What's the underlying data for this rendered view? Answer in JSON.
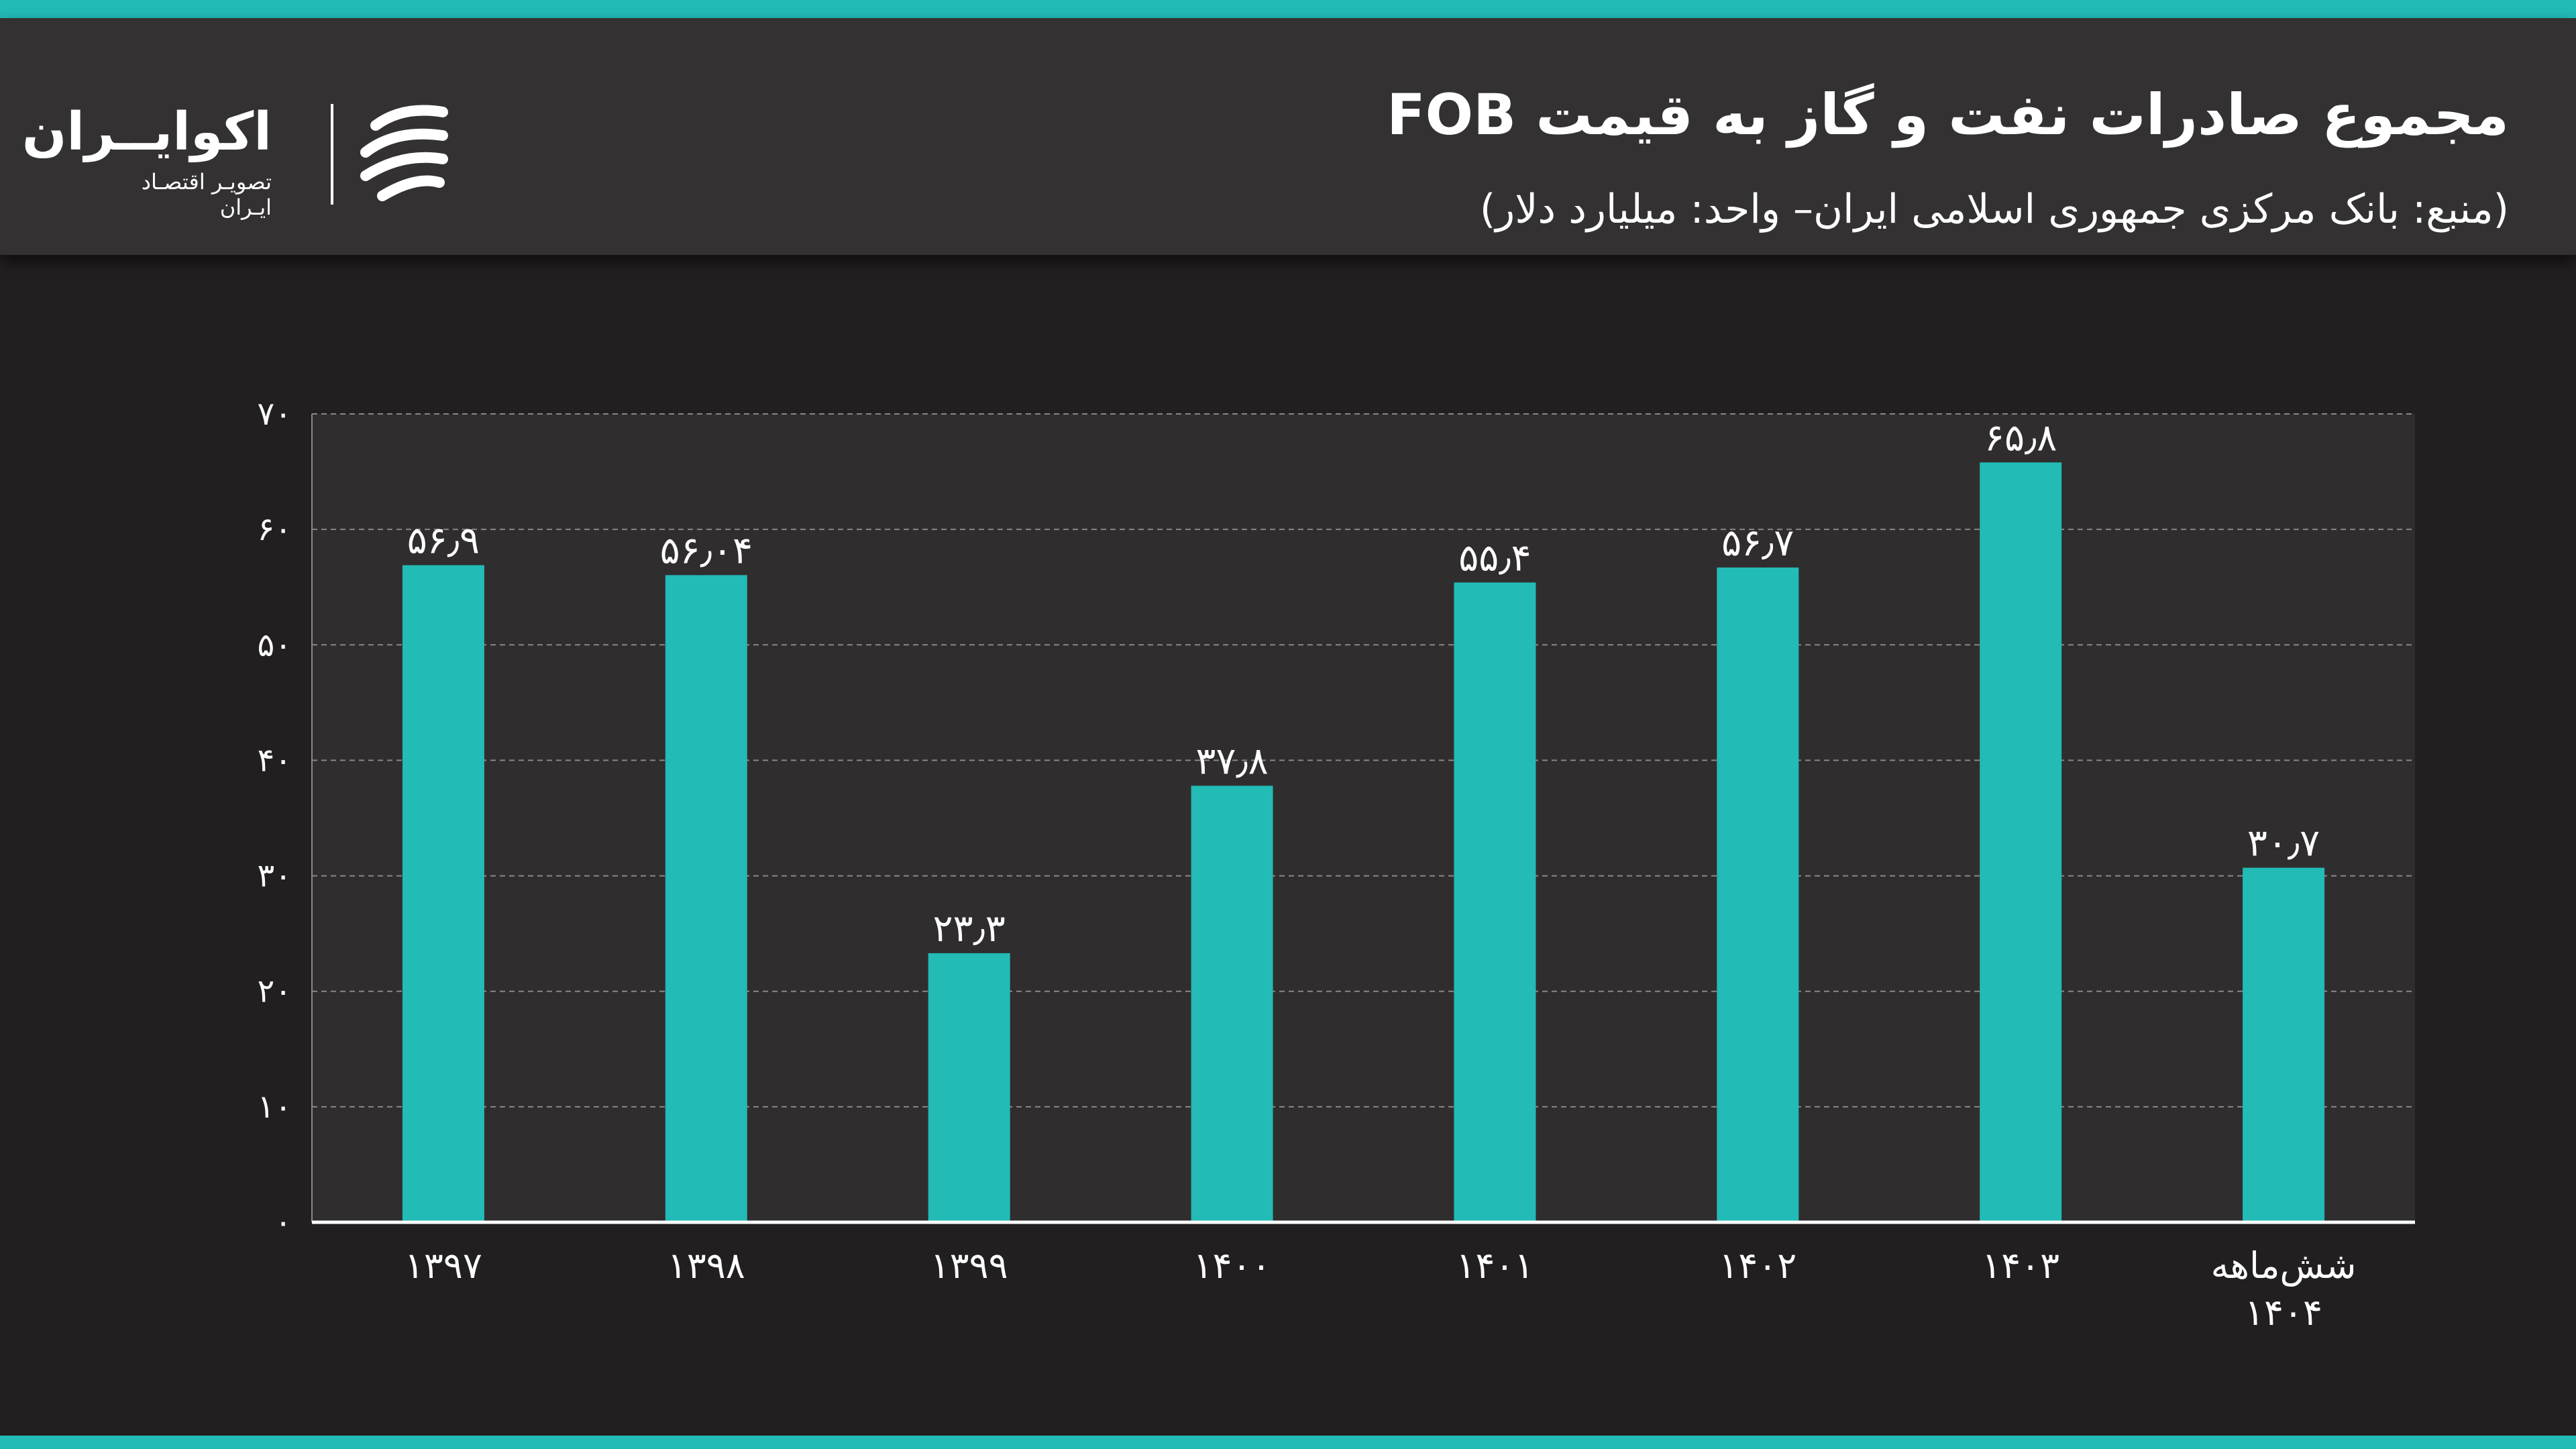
{
  "header": {
    "title": "مجموع صادرات نفت و گاز به قیمت FOB",
    "subtitle": "(منبع: بانک مرکزی جمهوری اسلامی ایران– واحد: میلیارد دلار)"
  },
  "logo": {
    "name": "اکوایــران",
    "tagline": "تصویـر اقتصـاد ایـران"
  },
  "colors": {
    "bar": "#22bbb6",
    "accent": "#22bbb6",
    "header_bg": "#343132",
    "page_bg": "#221f20",
    "plot_bg": "#302d2e"
  },
  "chart_data": {
    "type": "bar",
    "title": "مجموع صادرات نفت و گاز به قیمت FOB",
    "xlabel": "",
    "ylabel": "",
    "ylim": [
      0,
      70
    ],
    "grid": true,
    "yticks": [
      0,
      10,
      20,
      30,
      40,
      50,
      60,
      70
    ],
    "ytick_labels": [
      "۰",
      "۱۰",
      "۲۰",
      "۳۰",
      "۴۰",
      "۵۰",
      "۶۰",
      "۷۰"
    ],
    "categories": [
      "۱۳۹۷",
      "۱۳۹۸",
      "۱۳۹۹",
      "۱۴۰۰",
      "۱۴۰۱",
      "۱۴۰۲",
      "۱۴۰۳",
      [
        "شش‌ماهه",
        "۱۴۰۴"
      ]
    ],
    "values": [
      56.9,
      56.04,
      23.3,
      37.8,
      55.4,
      56.7,
      65.8,
      30.7
    ],
    "data_labels": [
      "۵۶٫۹",
      "۵۶٫۰۴",
      "۲۳٫۳",
      "۳۷٫۸",
      "۵۵٫۴",
      "۵۶٫۷",
      "۶۵٫۸",
      "۳۰٫۷"
    ]
  }
}
